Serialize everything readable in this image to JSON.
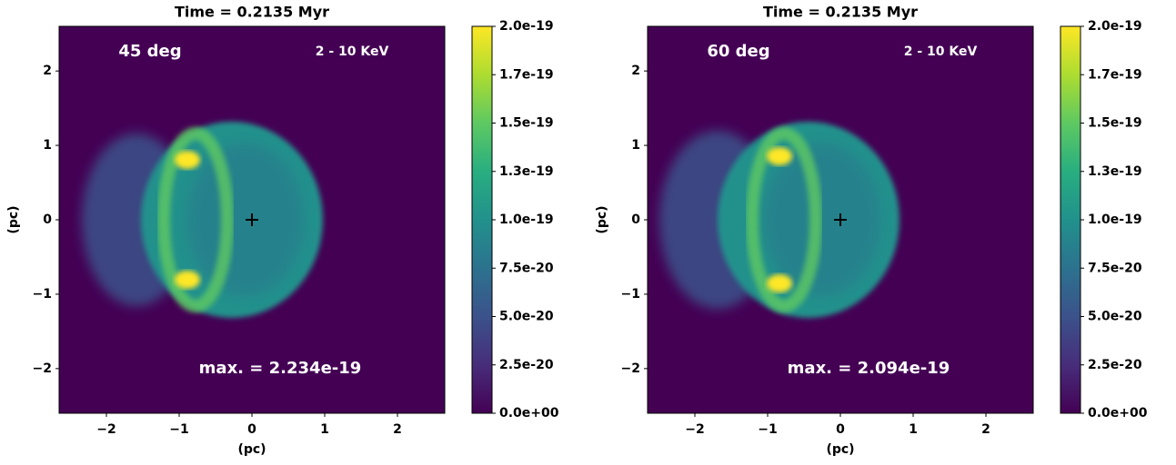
{
  "chart_data": [
    {
      "type": "heatmap",
      "title": "Time = 0.2135 Myr",
      "xlabel": "(pc)",
      "ylabel": "(pc)",
      "annotations": [
        "45 deg",
        "2 - 10 KeV",
        "max. = 2.234e-19"
      ],
      "xlim": [
        -2.65,
        2.65
      ],
      "ylim": [
        -2.6,
        2.6
      ],
      "xticks": [
        {
          "value": -2,
          "label": "−2"
        },
        {
          "value": -1,
          "label": "−1"
        },
        0,
        1,
        2
      ],
      "yticks": [
        {
          "value": -2,
          "label": "−2"
        },
        {
          "value": -1,
          "label": "−1"
        },
        0,
        1,
        2
      ],
      "points": {
        "x": [
          0
        ],
        "y": [
          0
        ]
      },
      "colormap": "viridis",
      "clim": [
        0,
        2e-19
      ],
      "cticks": [
        {
          "value": 0,
          "label": "0.0e+00"
        },
        {
          "value": 2.5e-20,
          "label": "2.5e-20"
        },
        {
          "value": 5e-20,
          "label": "5.0e-20"
        },
        {
          "value": 7.5e-20,
          "label": "7.5e-20"
        },
        {
          "value": 1e-19,
          "label": "1.0e-19"
        },
        {
          "value": 1.25e-19,
          "label": "1.3e-19"
        },
        {
          "value": 1.5e-19,
          "label": "1.5e-19"
        },
        {
          "value": 1.75e-19,
          "label": "1.7e-19"
        },
        {
          "value": 2e-19,
          "label": "2.0e-19"
        }
      ]
    },
    {
      "type": "heatmap",
      "title": "Time = 0.2135 Myr",
      "xlabel": "(pc)",
      "ylabel": "(pc)",
      "annotations": [
        "60 deg",
        "2 - 10 KeV",
        "max. = 2.094e-19"
      ],
      "xlim": [
        -2.65,
        2.65
      ],
      "ylim": [
        -2.6,
        2.6
      ],
      "xticks": [
        {
          "value": -2,
          "label": "−2"
        },
        {
          "value": -1,
          "label": "−1"
        },
        0,
        1,
        2
      ],
      "yticks": [
        {
          "value": -2,
          "label": "−2"
        },
        {
          "value": -1,
          "label": "−1"
        },
        0,
        1,
        2
      ],
      "points": {
        "x": [
          0
        ],
        "y": [
          0
        ]
      },
      "colormap": "viridis",
      "clim": [
        0,
        2e-19
      ],
      "cticks": [
        {
          "value": 0,
          "label": "0.0e+00"
        },
        {
          "value": 2.5e-20,
          "label": "2.5e-20"
        },
        {
          "value": 5e-20,
          "label": "5.0e-20"
        },
        {
          "value": 7.5e-20,
          "label": "7.5e-20"
        },
        {
          "value": 1e-19,
          "label": "1.0e-19"
        },
        {
          "value": 1.25e-19,
          "label": "1.3e-19"
        },
        {
          "value": 1.5e-19,
          "label": "1.5e-19"
        },
        {
          "value": 1.75e-19,
          "label": "1.7e-19"
        },
        {
          "value": 2e-19,
          "label": "2.0e-19"
        }
      ]
    }
  ]
}
